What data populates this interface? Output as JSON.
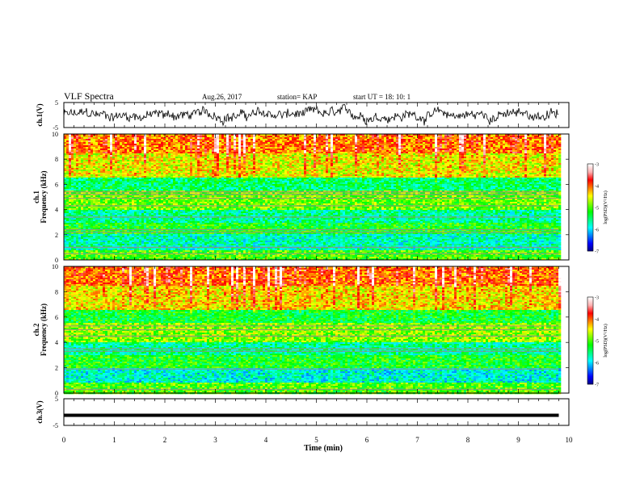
{
  "header": {
    "title": "VLF Spectra",
    "date": "Aug.26, 2017",
    "station": "station= KAP",
    "start": "start  UT =  18: 10: 1"
  },
  "chart_data": [
    {
      "type": "line",
      "panel": "ch1-waveform",
      "ylabel": "ch.1(V)",
      "yticks": [
        "5",
        "-5"
      ],
      "ylim": [
        -5,
        5
      ],
      "xlim": [
        0,
        10
      ],
      "data_end_min": 9.8,
      "series": [
        {
          "style": "noisy waveform",
          "mean_v": 0.0,
          "amplitude_v": 3.5,
          "color": "#000000"
        }
      ]
    },
    {
      "type": "heatmap",
      "panel": "ch1-spectrogram",
      "ylabel": "ch.1\nFrequency (kHz)",
      "ylim": [
        0,
        10
      ],
      "yticks": [
        "0",
        "2",
        "4",
        "6",
        "8",
        "10"
      ],
      "xlim": [
        0,
        10
      ],
      "data_end_min": 9.8,
      "colorbar": {
        "label": "log(PSD)(V²/Hz)",
        "ticks": [
          "-3",
          "-4",
          "-5",
          "-6",
          "-7"
        ],
        "range": [
          -7,
          -3
        ]
      },
      "bands_khz": [
        {
          "f0": 0.0,
          "f1": 0.8,
          "level": -5.0
        },
        {
          "f0": 0.8,
          "f1": 2.0,
          "level": -5.7
        },
        {
          "f0": 2.0,
          "f1": 3.0,
          "level": -5.2
        },
        {
          "f0": 3.0,
          "f1": 4.0,
          "level": -5.6
        },
        {
          "f0": 4.0,
          "f1": 5.5,
          "level": -4.9
        },
        {
          "f0": 5.5,
          "f1": 6.5,
          "level": -5.5
        },
        {
          "f0": 6.5,
          "f1": 8.5,
          "level": -4.5
        },
        {
          "f0": 8.5,
          "f1": 10.0,
          "level": -4.1
        }
      ],
      "lines_khz": [
        0.5,
        1.0,
        2.2,
        2.4,
        3.4,
        4.3,
        4.9,
        5.2,
        5.4
      ]
    },
    {
      "type": "heatmap",
      "panel": "ch2-spectrogram",
      "ylabel": "ch.2\nFrequency (kHz)",
      "ylim": [
        0,
        10
      ],
      "yticks": [
        "0",
        "2",
        "4",
        "6",
        "8",
        "10"
      ],
      "xlim": [
        0,
        10
      ],
      "data_end_min": 9.8,
      "colorbar": {
        "label": "log(PSD)(V²/Hz)",
        "ticks": [
          "-3",
          "-4",
          "-5",
          "-6",
          "-7"
        ],
        "range": [
          -7,
          -3
        ]
      },
      "bands_khz": [
        {
          "f0": 0.0,
          "f1": 0.8,
          "level": -5.0
        },
        {
          "f0": 0.8,
          "f1": 2.0,
          "level": -5.8
        },
        {
          "f0": 2.0,
          "f1": 3.0,
          "level": -5.2
        },
        {
          "f0": 3.0,
          "f1": 4.0,
          "level": -5.6
        },
        {
          "f0": 4.0,
          "f1": 5.5,
          "level": -4.8
        },
        {
          "f0": 5.5,
          "f1": 6.5,
          "level": -5.3
        },
        {
          "f0": 6.5,
          "f1": 8.5,
          "level": -4.4
        },
        {
          "f0": 8.5,
          "f1": 10.0,
          "level": -4.0
        }
      ],
      "lines_khz": [
        0.3,
        1.9,
        3.3,
        3.5,
        4.5,
        5.0,
        5.3
      ]
    },
    {
      "type": "line",
      "panel": "ch3-waveform",
      "ylabel": "ch.3(V)",
      "yticks": [
        "5",
        "-5"
      ],
      "ylim": [
        -5,
        5
      ],
      "xlim": [
        0,
        10
      ],
      "data_end_min": 9.8,
      "series": [
        {
          "style": "flat thick line",
          "mean_v": -1.2,
          "color": "#000000"
        }
      ]
    }
  ],
  "xaxis": {
    "label": "Time (min)",
    "ticks": [
      "0",
      "1",
      "2",
      "3",
      "4",
      "5",
      "6",
      "7",
      "8",
      "9",
      "10"
    ]
  },
  "colors": {
    "colormap": [
      "#000080",
      "#0000ff",
      "#0080ff",
      "#00ffff",
      "#00ff80",
      "#00ff00",
      "#80ff00",
      "#ffff00",
      "#ff8000",
      "#ff0000",
      "#ffb0b0",
      "#ffffff"
    ],
    "line": "#000000"
  }
}
